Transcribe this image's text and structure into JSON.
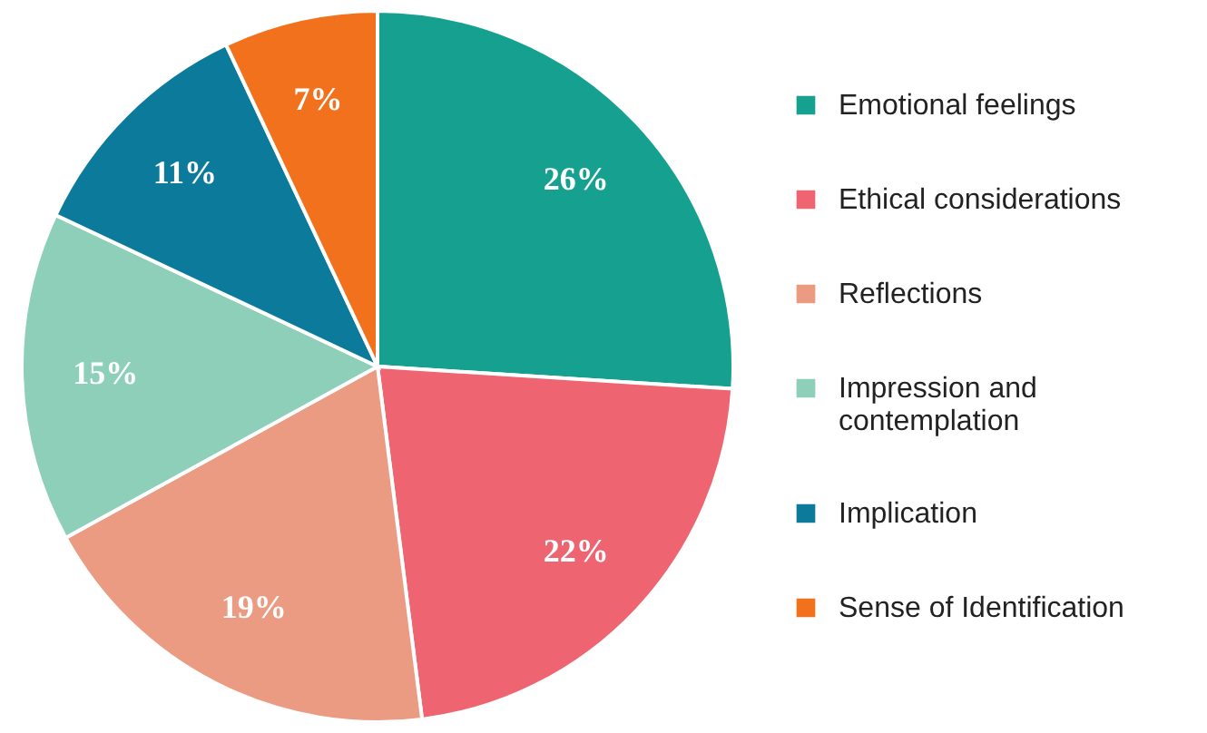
{
  "chart_data": {
    "type": "pie",
    "categories": [
      "Emotional feelings",
      "Ethical considerations",
      "Reflections",
      "Impression and contemplation",
      "Implication",
      "Sense of Identification"
    ],
    "values": [
      26,
      22,
      19,
      15,
      11,
      7
    ],
    "colors": [
      "#15a08f",
      "#ee6470",
      "#eb9b82",
      "#8dcfb9",
      "#0c7b9b",
      "#f2711d"
    ],
    "value_labels": [
      "26%",
      "22%",
      "19%",
      "15%",
      "11%",
      "7%"
    ],
    "legend": "right"
  }
}
